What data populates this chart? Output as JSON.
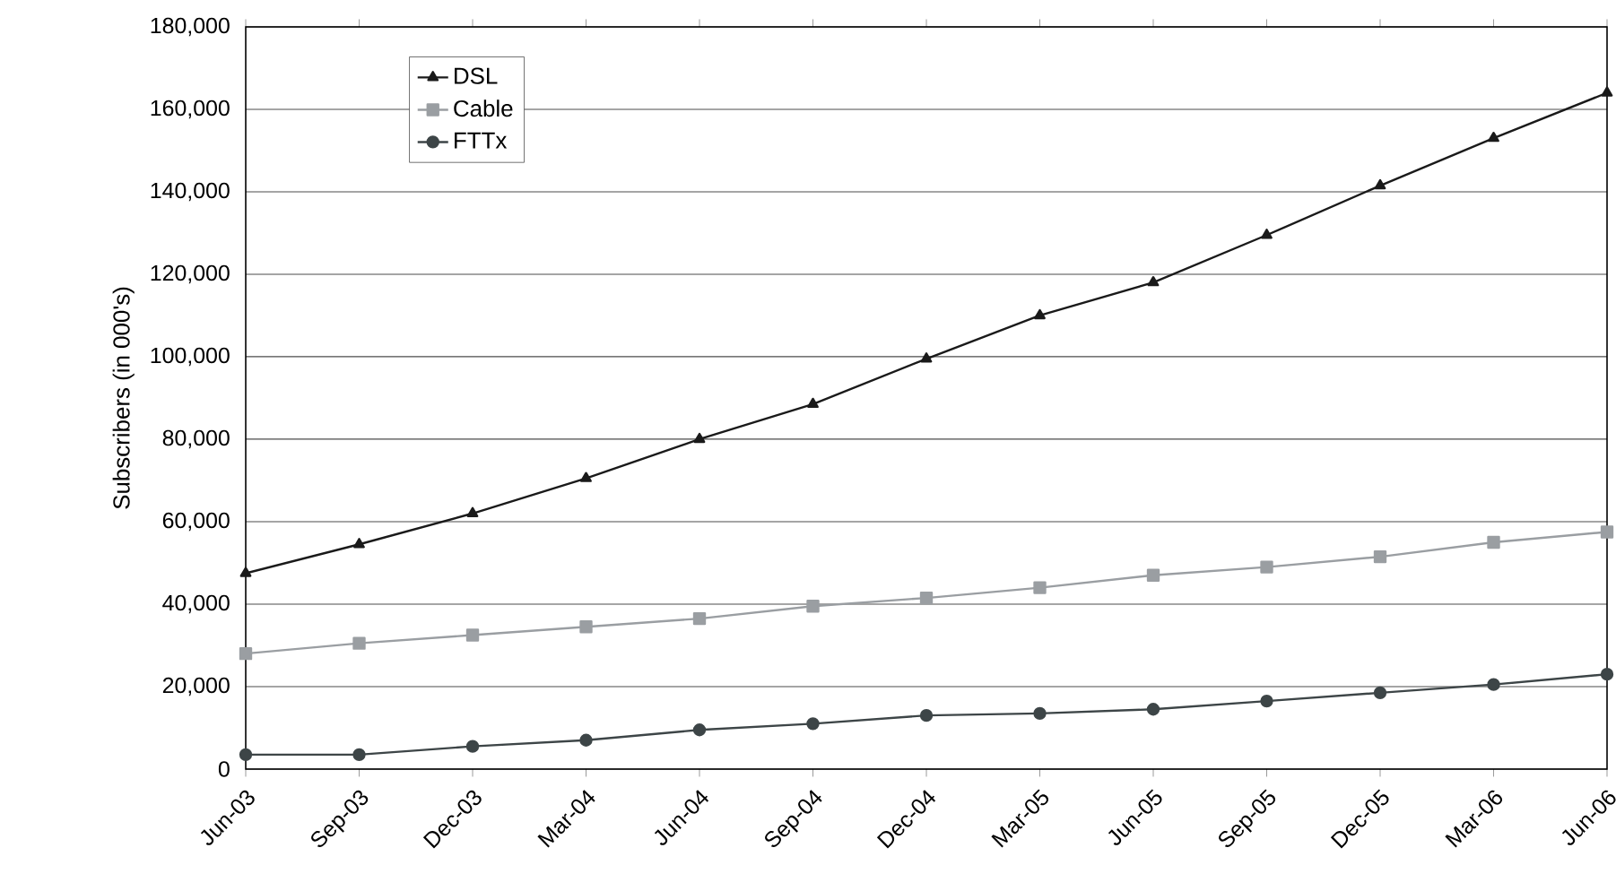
{
  "chart_data": {
    "type": "line",
    "ylabel": "Subscribers (in 000's)",
    "categories": [
      "Jun-03",
      "Sep-03",
      "Dec-03",
      "Mar-04",
      "Jun-04",
      "Sep-04",
      "Dec-04",
      "Mar-05",
      "Jun-05",
      "Sep-05",
      "Dec-05",
      "Mar-06",
      "Jun-06"
    ],
    "series": [
      {
        "name": "DSL",
        "color": "#1a1a1a",
        "marker": "triangle",
        "values": [
          47500,
          54500,
          62000,
          70500,
          80000,
          88500,
          99500,
          110000,
          118000,
          129500,
          141500,
          153000,
          164000
        ]
      },
      {
        "name": "Cable",
        "color": "#9a9ea2",
        "marker": "square",
        "values": [
          28000,
          30500,
          32500,
          34500,
          36500,
          39500,
          41500,
          44000,
          47000,
          49000,
          51500,
          55000,
          57500
        ]
      },
      {
        "name": "FTTx",
        "color": "#3d4547",
        "marker": "circle",
        "values": [
          3500,
          3500,
          5500,
          7000,
          9500,
          11000,
          13000,
          13500,
          14500,
          16500,
          18500,
          20500,
          23000
        ]
      }
    ],
    "ylim": [
      0,
      180000
    ],
    "yticks": [
      {
        "value": 0,
        "label": "0"
      },
      {
        "value": 20000,
        "label": "20,000"
      },
      {
        "value": 40000,
        "label": "40,000"
      },
      {
        "value": 60000,
        "label": "60,000"
      },
      {
        "value": 80000,
        "label": "80,000"
      },
      {
        "value": 100000,
        "label": "100,000"
      },
      {
        "value": 120000,
        "label": "120,000"
      },
      {
        "value": 140000,
        "label": "140,000"
      },
      {
        "value": 160000,
        "label": "160,000"
      },
      {
        "value": 180000,
        "label": "180,000"
      }
    ],
    "grid": "y",
    "legend": "top left",
    "line_style": "solid"
  }
}
